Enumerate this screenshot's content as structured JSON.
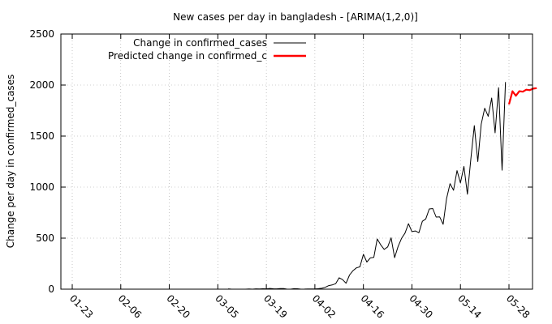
{
  "chart_data": {
    "type": "line",
    "title": "New cases per day in bangladesh -  [ARIMA(1,2,0)]",
    "xlabel": "",
    "ylabel": "Change per day in confirmed_cases",
    "ylim": [
      0,
      2500
    ],
    "yticks": [
      0,
      500,
      1000,
      1500,
      2000,
      2500
    ],
    "xticks": [
      "01-23",
      "02-06",
      "02-20",
      "03-05",
      "03-19",
      "04-02",
      "04-16",
      "04-30",
      "05-14",
      "05-28"
    ],
    "grid": true,
    "legend_position": "top-left",
    "series": [
      {
        "name": "Change in confirmed_cases",
        "color": "#000000",
        "x": [
          "03-08",
          "03-09",
          "03-10",
          "03-11",
          "03-12",
          "03-13",
          "03-14",
          "03-15",
          "03-16",
          "03-17",
          "03-18",
          "03-19",
          "03-20",
          "03-21",
          "03-22",
          "03-23",
          "03-24",
          "03-25",
          "03-26",
          "03-27",
          "03-28",
          "03-29",
          "03-30",
          "03-31",
          "04-01",
          "04-02",
          "04-03",
          "04-04",
          "04-05",
          "04-06",
          "04-07",
          "04-08",
          "04-09",
          "04-10",
          "04-11",
          "04-12",
          "04-13",
          "04-14",
          "04-15",
          "04-16",
          "04-17",
          "04-18",
          "04-19",
          "04-20",
          "04-21",
          "04-22",
          "04-23",
          "04-24",
          "04-25",
          "04-26",
          "04-27",
          "04-28",
          "04-29",
          "04-30",
          "05-01",
          "05-02",
          "05-03",
          "05-04",
          "05-05",
          "05-06",
          "05-07",
          "05-08",
          "05-09",
          "05-10",
          "05-11",
          "05-12",
          "05-13",
          "05-14",
          "05-15",
          "05-16",
          "05-17",
          "05-18",
          "05-19",
          "05-20",
          "05-21",
          "05-22",
          "05-23",
          "05-24",
          "05-25",
          "05-26",
          "05-27"
        ],
        "values": [
          3,
          0,
          0,
          0,
          0,
          0,
          2,
          0,
          3,
          2,
          4,
          3,
          7,
          4,
          3,
          6,
          6,
          0,
          0,
          5,
          4,
          0,
          1,
          2,
          2,
          2,
          5,
          9,
          18,
          35,
          41,
          54,
          112,
          94,
          58,
          139,
          182,
          209,
          219,
          341,
          266,
          306,
          312,
          492,
          434,
          390,
          414,
          503,
          309,
          418,
          497,
          549,
          641,
          564,
          571,
          552,
          665,
          688,
          786,
          790,
          706,
          709,
          636,
          887,
          1034,
          969,
          1162,
          1041,
          1202,
          930,
          1273,
          1602,
          1251,
          1617,
          1773,
          1694,
          1873,
          1532,
          1975,
          1166,
          2029
        ]
      },
      {
        "name": "Predicted change in confirmed_c",
        "color": "#ff0000",
        "x": [
          "05-28",
          "05-29",
          "05-30",
          "05-31",
          "06-01",
          "06-02",
          "06-03",
          "06-04",
          "06-05"
        ],
        "values": [
          1810,
          1940,
          1895,
          1940,
          1935,
          1955,
          1950,
          1965,
          1970
        ]
      }
    ]
  }
}
